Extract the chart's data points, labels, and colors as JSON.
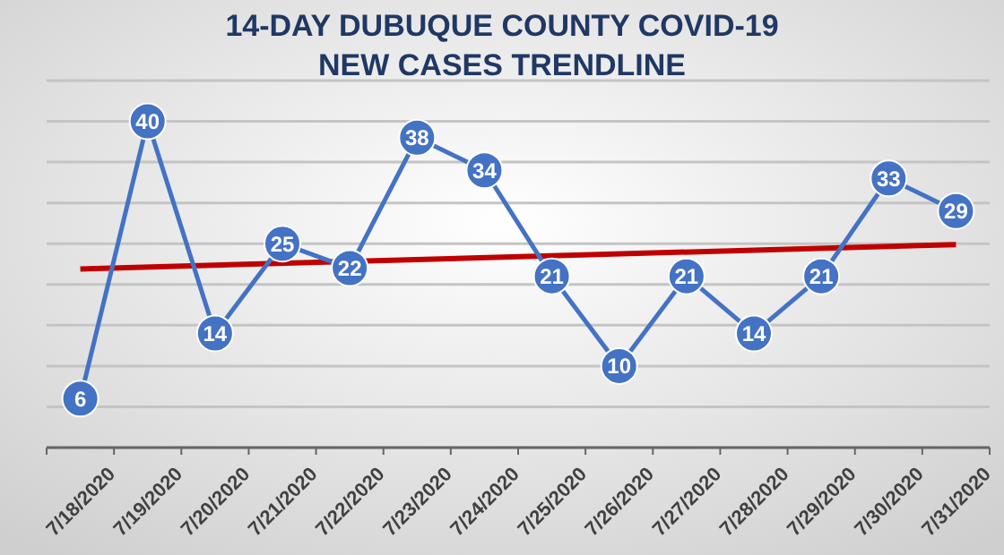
{
  "chart_data": {
    "type": "line",
    "title": "14-DAY DUBUQUE COUNTY COVID-19\nNEW CASES TRENDLINE",
    "categories": [
      "7/18/2020",
      "7/19/2020",
      "7/20/2020",
      "7/21/2020",
      "7/22/2020",
      "7/23/2020",
      "7/24/2020",
      "7/25/2020",
      "7/26/2020",
      "7/27/2020",
      "7/28/2020",
      "7/29/2020",
      "7/30/2020",
      "7/31/2020"
    ],
    "series": [
      {
        "color": "#4472c4",
        "marker": "circle",
        "data_labels": true,
        "values": [
          6,
          40,
          14,
          25,
          22,
          38,
          34,
          21,
          10,
          21,
          14,
          21,
          33,
          29
        ]
      },
      {
        "type": "line",
        "color": "#c00000",
        "marker": "none",
        "x": [
          "7/18/2020",
          "7/31/2020"
        ],
        "values": [
          21.9,
          24.9
        ]
      }
    ],
    "ylim": [
      0,
      45
    ],
    "yticks": [
      {
        "value": 0,
        "label": null
      },
      {
        "value": 5,
        "label": null
      },
      {
        "value": 10,
        "label": null
      },
      {
        "value": 15,
        "label": null
      },
      {
        "value": 20,
        "label": null
      },
      {
        "value": 25,
        "label": null
      },
      {
        "value": 30,
        "label": null
      },
      {
        "value": 35,
        "label": null
      },
      {
        "value": 40,
        "label": null
      },
      {
        "value": 45,
        "label": null
      }
    ],
    "grid": "y",
    "tick_labels": "x"
  }
}
